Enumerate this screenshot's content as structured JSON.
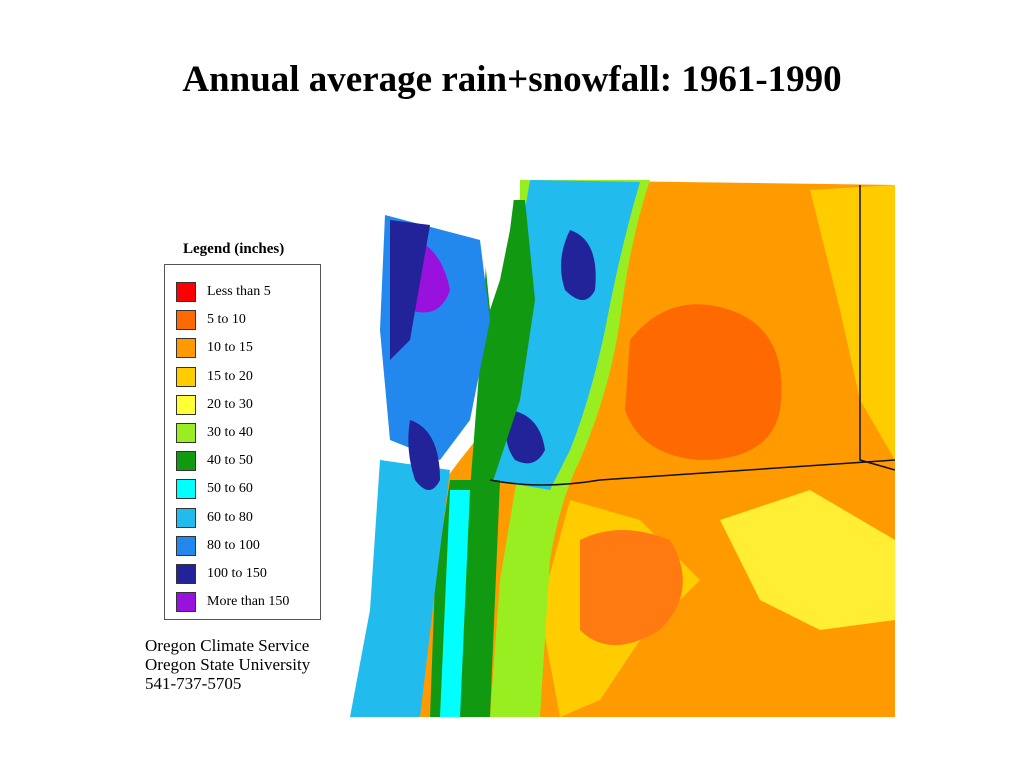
{
  "title": "Annual average rain+snowfall: 1961-1990",
  "legend": {
    "title": "Legend (inches)",
    "items": [
      {
        "label": "Less than 5",
        "color": "#ff0000"
      },
      {
        "label": "5 to 10",
        "color": "#ff6a00"
      },
      {
        "label": "10 to 15",
        "color": "#ff9a00"
      },
      {
        "label": "15 to 20",
        "color": "#ffcc00"
      },
      {
        "label": "20 to 30",
        "color": "#ffff33"
      },
      {
        "label": "30 to 40",
        "color": "#99ee22"
      },
      {
        "label": "40 to 50",
        "color": "#119911"
      },
      {
        "label": "50 to 60",
        "color": "#00ffff"
      },
      {
        "label": "60 to 80",
        "color": "#22bbee"
      },
      {
        "label": "80 to 100",
        "color": "#2288ee"
      },
      {
        "label": "100 to 150",
        "color": "#222299"
      },
      {
        "label": "More than 150",
        "color": "#9911dd"
      }
    ]
  },
  "credits": {
    "line1": "Oregon Climate Service",
    "line2": "Oregon State University",
    "line3": "541-737-5705"
  }
}
